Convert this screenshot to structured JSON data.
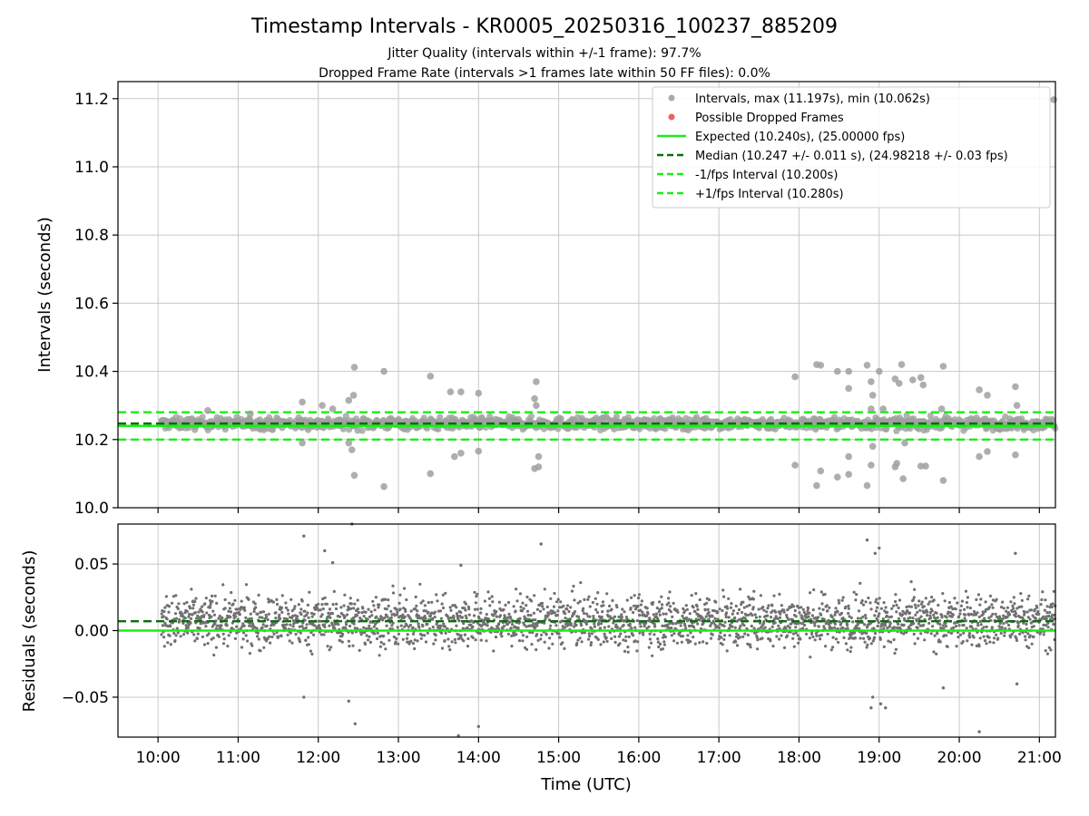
{
  "chart_data": {
    "type": "scatter",
    "title": "Timestamp Intervals - KR0005_20250316_100237_885209",
    "subtitle_lines": [
      "Jitter Quality (intervals within +/-1 frame): 97.7%",
      "Dropped Frame Rate (intervals >1 frames late within 50 FF files): 0.0%"
    ],
    "xlabel": "Time (UTC)",
    "x_range_hours": [
      9.5,
      21.2
    ],
    "x_ticks": [
      "10:00",
      "11:00",
      "12:00",
      "13:00",
      "14:00",
      "15:00",
      "16:00",
      "17:00",
      "18:00",
      "19:00",
      "20:00",
      "21:00"
    ],
    "x_tick_hours": [
      10,
      11,
      12,
      13,
      14,
      15,
      16,
      17,
      18,
      19,
      20,
      21
    ],
    "data_start_hour": 10.04,
    "data_end_hour": 21.2,
    "grid": true,
    "top_panel": {
      "ylabel": "Intervals (seconds)",
      "ylim": [
        10.0,
        11.25
      ],
      "y_ticks": [
        10.0,
        10.2,
        10.4,
        10.6,
        10.8,
        11.0,
        11.2
      ],
      "y_tick_labels": [
        "10.0",
        "10.2",
        "10.4",
        "10.6",
        "10.8",
        "11.0",
        "11.2"
      ],
      "expected": 10.24,
      "median": 10.247,
      "lower_interval": 10.2,
      "upper_interval": 10.28,
      "band_center": 10.247,
      "band_spread": 0.012,
      "outliers": [
        [
          10.62,
          10.285
        ],
        [
          11.15,
          10.275
        ],
        [
          11.8,
          10.31
        ],
        [
          11.8,
          10.19
        ],
        [
          12.05,
          10.3
        ],
        [
          12.18,
          10.29
        ],
        [
          12.38,
          10.315
        ],
        [
          12.44,
          10.33
        ],
        [
          12.45,
          10.412
        ],
        [
          12.38,
          10.19
        ],
        [
          12.42,
          10.17
        ],
        [
          12.45,
          10.095
        ],
        [
          12.82,
          10.4
        ],
        [
          12.82,
          10.062
        ],
        [
          13.4,
          10.386
        ],
        [
          13.4,
          10.1
        ],
        [
          13.65,
          10.34
        ],
        [
          13.78,
          10.34
        ],
        [
          13.7,
          10.15
        ],
        [
          13.78,
          10.16
        ],
        [
          14.0,
          10.336
        ],
        [
          14.0,
          10.166
        ],
        [
          14.72,
          10.37
        ],
        [
          14.7,
          10.32
        ],
        [
          14.72,
          10.3
        ],
        [
          14.75,
          10.15
        ],
        [
          14.7,
          10.115
        ],
        [
          14.75,
          10.12
        ],
        [
          17.95,
          10.384
        ],
        [
          17.95,
          10.125
        ],
        [
          18.22,
          10.42
        ],
        [
          18.27,
          10.418
        ],
        [
          18.22,
          10.065
        ],
        [
          18.27,
          10.108
        ],
        [
          18.48,
          10.4
        ],
        [
          18.62,
          10.4
        ],
        [
          18.62,
          10.35
        ],
        [
          18.62,
          10.15
        ],
        [
          18.62,
          10.098
        ],
        [
          18.48,
          10.09
        ],
        [
          18.85,
          10.418
        ],
        [
          18.9,
          10.37
        ],
        [
          18.92,
          10.33
        ],
        [
          18.9,
          10.29
        ],
        [
          18.85,
          10.065
        ],
        [
          18.9,
          10.125
        ],
        [
          18.92,
          10.18
        ],
        [
          19.0,
          10.4
        ],
        [
          19.05,
          10.29
        ],
        [
          19.2,
          10.378
        ],
        [
          19.25,
          10.365
        ],
        [
          19.28,
          10.42
        ],
        [
          19.42,
          10.375
        ],
        [
          19.52,
          10.382
        ],
        [
          19.55,
          10.36
        ],
        [
          19.2,
          10.12
        ],
        [
          19.22,
          10.13
        ],
        [
          19.3,
          10.085
        ],
        [
          19.32,
          10.19
        ],
        [
          19.52,
          10.122
        ],
        [
          19.58,
          10.122
        ],
        [
          19.8,
          10.415
        ],
        [
          19.8,
          10.08
        ],
        [
          19.78,
          10.29
        ],
        [
          20.25,
          10.346
        ],
        [
          20.35,
          10.33
        ],
        [
          20.25,
          10.15
        ],
        [
          20.35,
          10.165
        ],
        [
          20.7,
          10.355
        ],
        [
          20.7,
          10.155
        ],
        [
          20.72,
          10.3
        ],
        [
          21.18,
          11.197
        ]
      ]
    },
    "bottom_panel": {
      "ylabel": "Residuals (seconds)",
      "ylim": [
        -0.08,
        0.08
      ],
      "y_ticks": [
        -0.05,
        0.0,
        0.05
      ],
      "y_tick_labels": [
        "−0.05",
        "0.00",
        "0.05"
      ],
      "expected": 0.0,
      "median": 0.007,
      "residual_spread": 0.014,
      "outliers": [
        [
          11.82,
          0.071
        ],
        [
          12.08,
          0.06
        ],
        [
          12.18,
          0.051
        ],
        [
          12.42,
          0.08
        ],
        [
          12.38,
          -0.053
        ],
        [
          12.46,
          -0.07
        ],
        [
          11.82,
          -0.05
        ],
        [
          13.78,
          0.049
        ],
        [
          13.75,
          -0.079
        ],
        [
          14.0,
          -0.072
        ],
        [
          14.78,
          0.065
        ],
        [
          18.85,
          0.068
        ],
        [
          18.95,
          0.058
        ],
        [
          19.0,
          0.062
        ],
        [
          18.9,
          -0.058
        ],
        [
          19.02,
          -0.055
        ],
        [
          19.08,
          -0.058
        ],
        [
          20.25,
          -0.076
        ],
        [
          20.7,
          0.058
        ],
        [
          20.72,
          -0.04
        ],
        [
          19.8,
          -0.043
        ],
        [
          18.92,
          -0.05
        ]
      ]
    },
    "legend": {
      "placement": "upper right",
      "entries": [
        {
          "label": "Intervals, max (11.197s), min (10.062s)",
          "kind": "dot",
          "color": "#a9a9a9"
        },
        {
          "label": "Possible Dropped Frames",
          "kind": "dot",
          "color": "#f06060"
        },
        {
          "label": "Expected (10.240s), (25.00000 fps)",
          "kind": "solid",
          "color": "#18ee18"
        },
        {
          "label": "Median (10.247 +/- 0.011 s), (24.98218 +/- 0.03 fps)",
          "kind": "dashed",
          "color": "#0b6e0b"
        },
        {
          "label": "-1/fps Interval (10.200s)",
          "kind": "dashed",
          "color": "#18ee18"
        },
        {
          "label": "+1/fps Interval (10.280s)",
          "kind": "dashed",
          "color": "#18ee18"
        }
      ]
    },
    "colors": {
      "points": "#a0a0a0",
      "residual_points": "#707070",
      "expected": "#18ee18",
      "median": "#0b6e0b",
      "grid": "#c8c8c8"
    }
  }
}
